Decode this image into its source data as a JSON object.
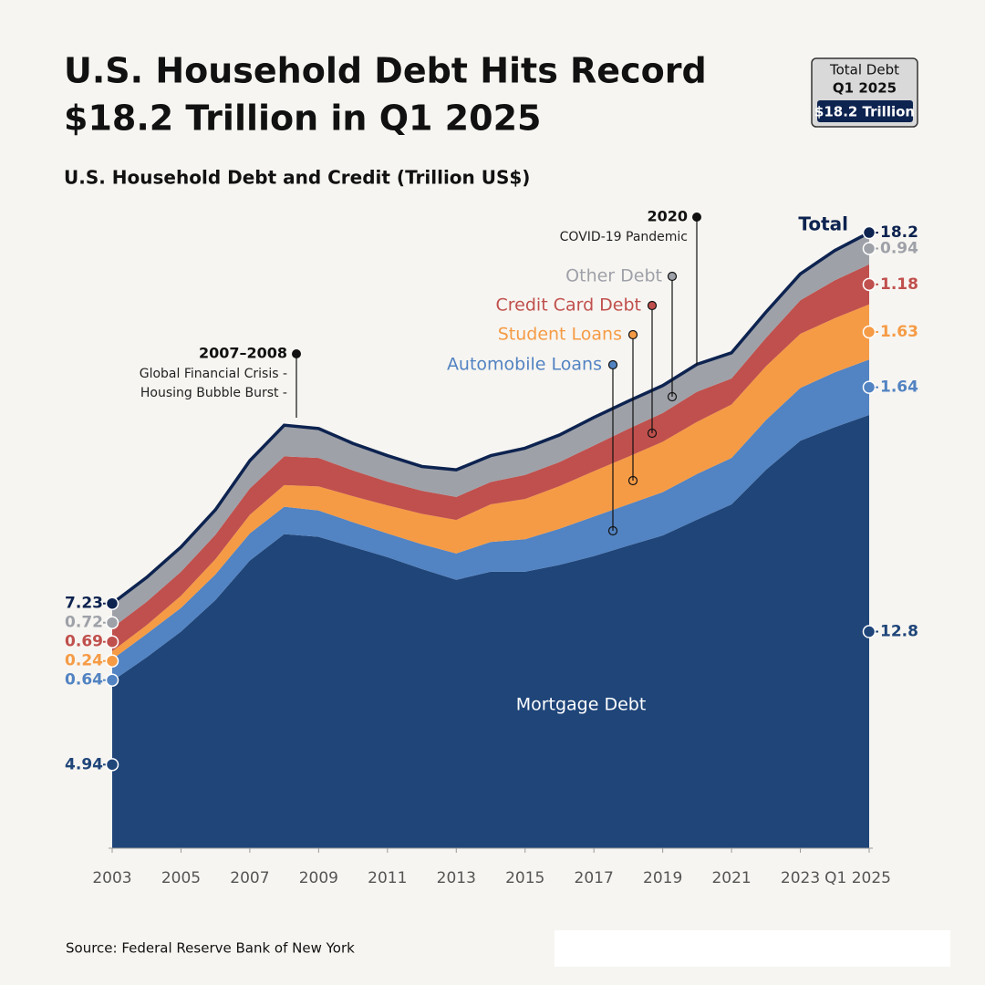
{
  "header": {
    "title": [
      "U.S. Household Debt Hits Record",
      "$18.2 Trillion in Q1 2025"
    ],
    "badge": [
      "Total Debt",
      "Q1 2025",
      "$18.2 Trillion"
    ],
    "source": "Source: Federal Reserve Bank of New York"
  },
  "chart_data": {
    "type": "stacked-area",
    "subtitle": "U.S. Household Debt and Credit (Trillion US$)",
    "x": [
      2003,
      2004,
      2005,
      2006,
      2007,
      2008,
      2009,
      2010,
      2011,
      2012,
      2013,
      2014,
      2015,
      2016,
      2017,
      2018,
      2019,
      2020,
      2021,
      2022,
      2023,
      2024,
      2025
    ],
    "xlim": [
      2003,
      2025
    ],
    "xticks": [
      2003,
      2005,
      2007,
      2009,
      2011,
      2013,
      2015,
      2017,
      2019,
      2021,
      2023,
      {
        "value": 2025,
        "label": "Q1 2025"
      }
    ],
    "ylim": [
      0,
      19
    ],
    "series": [
      {
        "name": "Mortgage Debt",
        "color": "#1f4579",
        "values": [
          4.94,
          5.64,
          6.4,
          7.33,
          8.5,
          9.28,
          9.2,
          8.9,
          8.6,
          8.25,
          7.93,
          8.17,
          8.17,
          8.37,
          8.63,
          8.94,
          9.24,
          9.71,
          10.16,
          11.18,
          12.04,
          12.44,
          12.8
        ]
      },
      {
        "name": "Automobile Loans",
        "color": "#5283c2",
        "values": [
          0.64,
          0.69,
          0.7,
          0.76,
          0.8,
          0.81,
          0.78,
          0.73,
          0.7,
          0.73,
          0.78,
          0.88,
          0.96,
          1.07,
          1.17,
          1.22,
          1.28,
          1.35,
          1.37,
          1.47,
          1.56,
          1.62,
          1.64
        ]
      },
      {
        "name": "Student Loans",
        "color": "#f59b45",
        "values": [
          0.24,
          0.26,
          0.36,
          0.45,
          0.55,
          0.64,
          0.71,
          0.77,
          0.83,
          0.9,
          0.99,
          1.11,
          1.19,
          1.26,
          1.34,
          1.41,
          1.49,
          1.54,
          1.58,
          1.59,
          1.6,
          1.6,
          1.63
        ]
      },
      {
        "name": "Credit Card Debt",
        "color": "#c0504d",
        "values": [
          0.69,
          0.69,
          0.71,
          0.72,
          0.78,
          0.85,
          0.84,
          0.76,
          0.7,
          0.68,
          0.68,
          0.66,
          0.71,
          0.71,
          0.76,
          0.82,
          0.85,
          0.89,
          0.77,
          0.84,
          0.99,
          1.12,
          1.18
        ]
      },
      {
        "name": "Other Debt",
        "color": "#9ea1a8",
        "values": [
          0.72,
          0.72,
          0.73,
          0.74,
          0.82,
          0.92,
          0.87,
          0.8,
          0.77,
          0.72,
          0.8,
          0.78,
          0.79,
          0.8,
          0.83,
          0.82,
          0.81,
          0.81,
          0.76,
          0.76,
          0.78,
          0.88,
          0.94
        ]
      }
    ],
    "total": {
      "name": "Total",
      "color": "#0d2350",
      "start": 7.23,
      "end": 18.2
    },
    "annotations": [
      {
        "label": "2007–2008",
        "text": [
          "Global Financial Crisis -",
          "Housing Bubble Burst -"
        ]
      },
      {
        "label": "2020",
        "text": [
          "COVID-19 Pandemic"
        ]
      }
    ]
  }
}
